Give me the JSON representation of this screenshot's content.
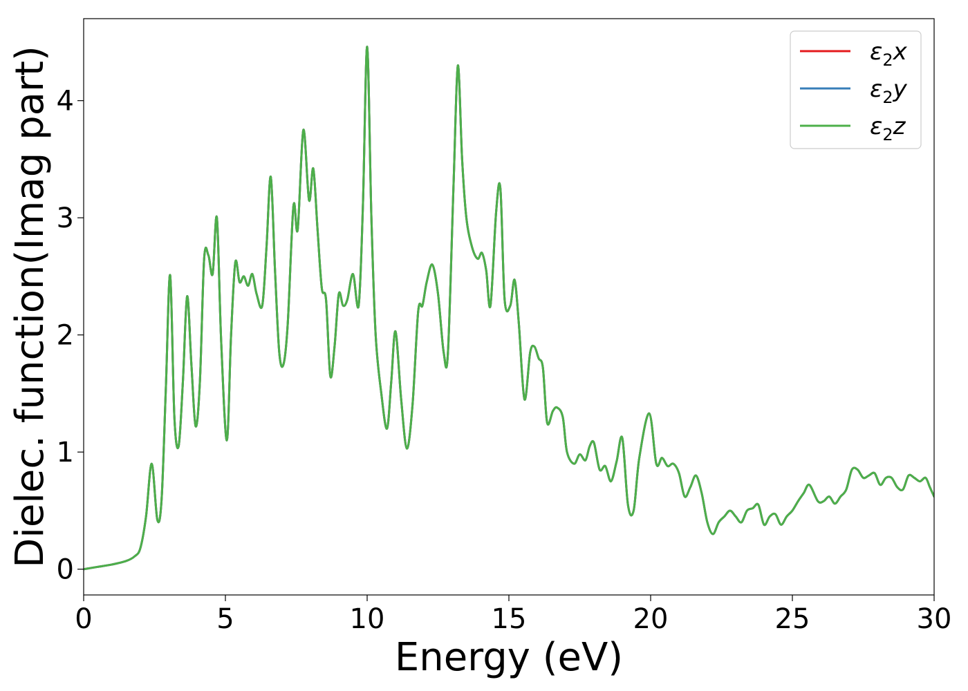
{
  "chart_data": {
    "type": "line",
    "title": "",
    "xlabel": "Energy (eV)",
    "ylabel": "Dielec. function(Imag part)",
    "xlim": [
      0,
      30
    ],
    "ylim": [
      -0.22,
      4.7
    ],
    "xticks": [
      0,
      5,
      10,
      15,
      20,
      25,
      30
    ],
    "xtick_labels": [
      "0",
      "5",
      "10",
      "15",
      "20",
      "25",
      "30"
    ],
    "yticks": [
      0,
      1,
      2,
      3,
      4
    ],
    "ytick_labels": [
      "0",
      "1",
      "2",
      "3",
      "4"
    ],
    "grid": false,
    "legend_position": "top-right",
    "legend": [
      {
        "base": "ε",
        "sub": "2",
        "var": "x"
      },
      {
        "base": "ε",
        "sub": "2",
        "var": "y"
      },
      {
        "base": "ε",
        "sub": "2",
        "var": "z"
      }
    ],
    "series": [
      {
        "name": "ε2x",
        "color": "#e41a1c",
        "ref": "shared"
      },
      {
        "name": "ε2y",
        "color": "#377eb8",
        "ref": "shared"
      },
      {
        "name": "ε2z",
        "color": "#4daf4a",
        "ref": "shared"
      }
    ],
    "shared": {
      "x": [
        0,
        0.5,
        1.0,
        1.5,
        1.8,
        2.0,
        2.2,
        2.4,
        2.6,
        2.75,
        2.9,
        3.05,
        3.2,
        3.35,
        3.5,
        3.65,
        3.8,
        3.95,
        4.1,
        4.25,
        4.4,
        4.55,
        4.7,
        4.85,
        5.05,
        5.2,
        5.35,
        5.5,
        5.65,
        5.8,
        5.95,
        6.1,
        6.3,
        6.45,
        6.6,
        6.75,
        6.9,
        7.05,
        7.2,
        7.4,
        7.55,
        7.75,
        7.95,
        8.1,
        8.25,
        8.4,
        8.55,
        8.7,
        8.85,
        9.0,
        9.15,
        9.3,
        9.5,
        9.7,
        9.85,
        10.0,
        10.15,
        10.3,
        10.5,
        10.7,
        10.85,
        11.0,
        11.2,
        11.4,
        11.6,
        11.8,
        11.95,
        12.1,
        12.3,
        12.5,
        12.7,
        12.85,
        13.05,
        13.2,
        13.35,
        13.5,
        13.7,
        13.9,
        14.05,
        14.2,
        14.35,
        14.55,
        14.7,
        14.85,
        15.05,
        15.2,
        15.35,
        15.55,
        15.75,
        15.9,
        16.05,
        16.2,
        16.35,
        16.55,
        16.7,
        16.9,
        17.05,
        17.3,
        17.5,
        17.7,
        17.85,
        18.0,
        18.2,
        18.4,
        18.6,
        18.8,
        19.0,
        19.2,
        19.4,
        19.6,
        19.95,
        20.2,
        20.4,
        20.6,
        20.8,
        21.0,
        21.2,
        21.4,
        21.6,
        21.8,
        22.0,
        22.2,
        22.4,
        22.6,
        22.8,
        23.0,
        23.2,
        23.4,
        23.6,
        23.8,
        24.0,
        24.2,
        24.4,
        24.6,
        24.8,
        25.0,
        25.2,
        25.4,
        25.6,
        25.9,
        26.1,
        26.3,
        26.5,
        26.7,
        26.9,
        27.1,
        27.3,
        27.5,
        27.7,
        27.9,
        28.1,
        28.3,
        28.5,
        28.7,
        28.9,
        29.1,
        29.3,
        29.5,
        29.7,
        29.85,
        30.0
      ],
      "y": [
        0,
        0.02,
        0.04,
        0.07,
        0.11,
        0.18,
        0.45,
        0.9,
        0.42,
        0.6,
        1.55,
        2.51,
        1.3,
        1.05,
        1.6,
        2.33,
        1.75,
        1.22,
        1.6,
        2.65,
        2.68,
        2.52,
        3.0,
        1.95,
        1.1,
        2.0,
        2.62,
        2.45,
        2.5,
        2.42,
        2.52,
        2.35,
        2.25,
        2.75,
        3.35,
        2.55,
        1.85,
        1.75,
        2.1,
        3.1,
        2.9,
        3.75,
        3.15,
        3.42,
        2.9,
        2.4,
        2.3,
        1.65,
        1.9,
        2.35,
        2.25,
        2.3,
        2.52,
        2.25,
        3.1,
        4.46,
        3.0,
        2.0,
        1.5,
        1.2,
        1.6,
        2.03,
        1.45,
        1.03,
        1.4,
        2.2,
        2.25,
        2.45,
        2.6,
        2.35,
        1.85,
        1.85,
        3.3,
        4.3,
        3.5,
        3.0,
        2.75,
        2.65,
        2.7,
        2.55,
        2.25,
        3.05,
        3.25,
        2.3,
        2.25,
        2.47,
        2.1,
        1.45,
        1.85,
        1.9,
        1.8,
        1.72,
        1.25,
        1.35,
        1.38,
        1.3,
        1.0,
        0.9,
        0.98,
        0.93,
        1.05,
        1.08,
        0.85,
        0.88,
        0.75,
        0.92,
        1.12,
        0.55,
        0.5,
        0.95,
        1.33,
        0.9,
        0.95,
        0.88,
        0.9,
        0.82,
        0.62,
        0.7,
        0.8,
        0.65,
        0.4,
        0.3,
        0.4,
        0.45,
        0.5,
        0.45,
        0.4,
        0.5,
        0.52,
        0.55,
        0.38,
        0.45,
        0.47,
        0.38,
        0.45,
        0.5,
        0.58,
        0.65,
        0.72,
        0.58,
        0.58,
        0.62,
        0.56,
        0.62,
        0.68,
        0.85,
        0.85,
        0.78,
        0.8,
        0.82,
        0.72,
        0.78,
        0.78,
        0.7,
        0.68,
        0.8,
        0.78,
        0.75,
        0.78,
        0.7,
        0.62
      ]
    }
  }
}
